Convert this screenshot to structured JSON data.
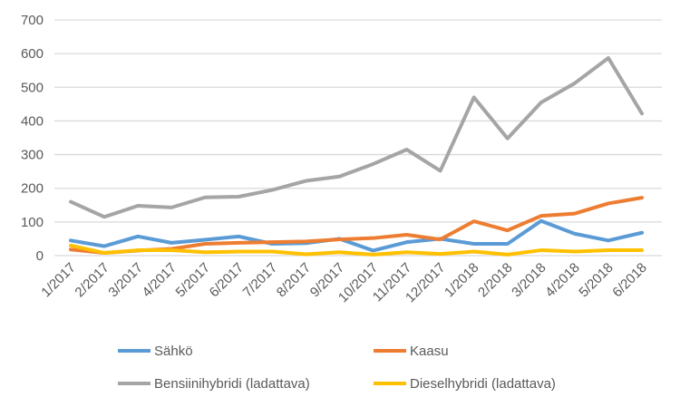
{
  "chart_data": {
    "type": "line",
    "title": "",
    "xlabel": "",
    "ylabel": "",
    "ylim": [
      0,
      700
    ],
    "yticks": [
      0,
      100,
      200,
      300,
      400,
      500,
      600,
      700
    ],
    "grid": true,
    "legend_placement": "bottom",
    "categories": [
      "1/2017",
      "2/2017",
      "3/2017",
      "4/2017",
      "5/2017",
      "6/2017",
      "7/2017",
      "8/2017",
      "9/2017",
      "10/2017",
      "11/2017",
      "12/2017",
      "1/2018",
      "2/2018",
      "3/2018",
      "4/2018",
      "5/2018",
      "6/2018"
    ],
    "series": [
      {
        "name": "Sähkö",
        "color": "#5B9BD5",
        "values": [
          45,
          28,
          57,
          38,
          47,
          57,
          35,
          37,
          50,
          15,
          40,
          50,
          35,
          35,
          103,
          65,
          45,
          68
        ]
      },
      {
        "name": "Kaasu",
        "color": "#ED7D31",
        "values": [
          18,
          8,
          15,
          20,
          35,
          38,
          40,
          42,
          48,
          52,
          62,
          48,
          102,
          75,
          118,
          125,
          155,
          172
        ]
      },
      {
        "name": "Bensiinihybridi (ladattava)",
        "color": "#A5A5A5",
        "values": [
          160,
          115,
          148,
          143,
          173,
          175,
          195,
          222,
          235,
          272,
          315,
          252,
          470,
          348,
          455,
          512,
          587,
          422
        ]
      },
      {
        "name": "Dieselhybridi (ladattava)",
        "color": "#FFC000",
        "values": [
          30,
          8,
          16,
          16,
          10,
          12,
          12,
          4,
          10,
          3,
          10,
          5,
          12,
          3,
          16,
          12,
          16,
          16
        ]
      }
    ]
  }
}
